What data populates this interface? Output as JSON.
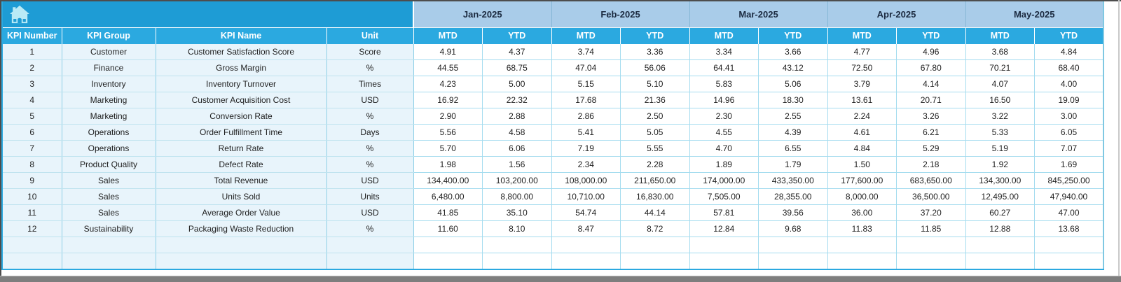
{
  "table": {
    "corner": {
      "icon": "home"
    },
    "months": [
      "Jan-2025",
      "Feb-2025",
      "Mar-2025",
      "Apr-2025",
      "May-2025"
    ],
    "period_headers": [
      "MTD",
      "YTD"
    ],
    "info_columns": [
      "KPI Number",
      "KPI Group",
      "KPI Name",
      "Unit"
    ],
    "rows": [
      {
        "number": "1",
        "group": "Customer",
        "name": "Customer Satisfaction Score",
        "unit": "Score",
        "values": [
          "4.91",
          "4.37",
          "3.74",
          "3.36",
          "3.34",
          "3.66",
          "4.77",
          "4.96",
          "3.68",
          "4.84"
        ]
      },
      {
        "number": "2",
        "group": "Finance",
        "name": "Gross Margin",
        "unit": "%",
        "values": [
          "44.55",
          "68.75",
          "47.04",
          "56.06",
          "64.41",
          "43.12",
          "72.50",
          "67.80",
          "70.21",
          "68.40"
        ]
      },
      {
        "number": "3",
        "group": "Inventory",
        "name": "Inventory Turnover",
        "unit": "Times",
        "values": [
          "4.23",
          "5.00",
          "5.15",
          "5.10",
          "5.83",
          "5.06",
          "3.79",
          "4.14",
          "4.07",
          "4.00"
        ]
      },
      {
        "number": "4",
        "group": "Marketing",
        "name": "Customer Acquisition Cost",
        "unit": "USD",
        "values": [
          "16.92",
          "22.32",
          "17.68",
          "21.36",
          "14.96",
          "18.30",
          "13.61",
          "20.71",
          "16.50",
          "19.09"
        ]
      },
      {
        "number": "5",
        "group": "Marketing",
        "name": "Conversion Rate",
        "unit": "%",
        "values": [
          "2.90",
          "2.88",
          "2.86",
          "2.50",
          "2.30",
          "2.55",
          "2.24",
          "3.26",
          "3.22",
          "3.00"
        ]
      },
      {
        "number": "6",
        "group": "Operations",
        "name": "Order Fulfillment Time",
        "unit": "Days",
        "values": [
          "5.56",
          "4.58",
          "5.41",
          "5.05",
          "4.55",
          "4.39",
          "4.61",
          "6.21",
          "5.33",
          "6.05"
        ]
      },
      {
        "number": "7",
        "group": "Operations",
        "name": "Return Rate",
        "unit": "%",
        "values": [
          "5.70",
          "6.06",
          "7.19",
          "5.55",
          "4.70",
          "6.55",
          "4.84",
          "5.29",
          "5.19",
          "7.07"
        ]
      },
      {
        "number": "8",
        "group": "Product Quality",
        "name": "Defect Rate",
        "unit": "%",
        "values": [
          "1.98",
          "1.56",
          "2.34",
          "2.28",
          "1.89",
          "1.79",
          "1.50",
          "2.18",
          "1.92",
          "1.69"
        ]
      },
      {
        "number": "9",
        "group": "Sales",
        "name": "Total Revenue",
        "unit": "USD",
        "values": [
          "134,400.00",
          "103,200.00",
          "108,000.00",
          "211,650.00",
          "174,000.00",
          "433,350.00",
          "177,600.00",
          "683,650.00",
          "134,300.00",
          "845,250.00"
        ]
      },
      {
        "number": "10",
        "group": "Sales",
        "name": "Units Sold",
        "unit": "Units",
        "values": [
          "6,480.00",
          "8,800.00",
          "10,710.00",
          "16,830.00",
          "7,505.00",
          "28,355.00",
          "8,000.00",
          "36,500.00",
          "12,495.00",
          "47,940.00"
        ]
      },
      {
        "number": "11",
        "group": "Sales",
        "name": "Average Order Value",
        "unit": "USD",
        "values": [
          "41.85",
          "35.10",
          "54.74",
          "44.14",
          "57.81",
          "39.56",
          "36.00",
          "37.20",
          "60.27",
          "47.00"
        ]
      },
      {
        "number": "12",
        "group": "Sustainability",
        "name": "Packaging Waste Reduction",
        "unit": "%",
        "values": [
          "11.60",
          "8.10",
          "8.47",
          "8.72",
          "12.84",
          "9.68",
          "11.83",
          "11.85",
          "12.88",
          "13.68"
        ]
      }
    ],
    "empty_row_count": 2
  },
  "colors": {
    "header_teal": "#1e9cd5",
    "header_cyan": "#2ba9e0",
    "month_band": "#a9cce9",
    "left_cell_bg": "#e8f4fb",
    "cell_bg": "#ffffff",
    "month_text": "#1b2a40",
    "header_text": "#ffffff",
    "data_text": "#1f1f1f",
    "home_icon": "#b9eaf6"
  },
  "layout": {
    "info_col_widths": [
      85,
      134,
      244,
      124
    ],
    "value_col_width": 98.5
  }
}
